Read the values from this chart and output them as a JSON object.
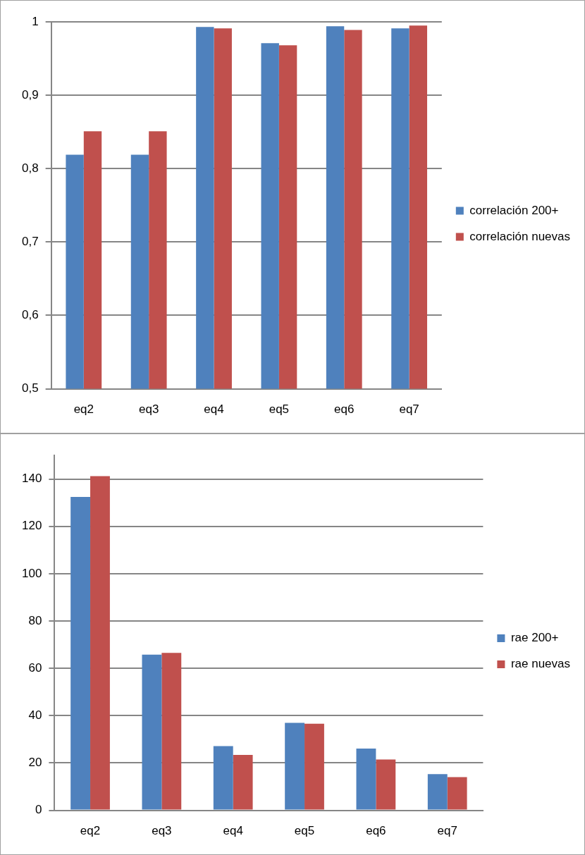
{
  "chart_data": [
    {
      "type": "bar",
      "categories": [
        "eq2",
        "eq3",
        "eq4",
        "eq5",
        "eq6",
        "eq7"
      ],
      "series": [
        {
          "name": "correlación 200+",
          "color": "#4f81bd",
          "values": [
            0.819,
            0.819,
            0.993,
            0.971,
            0.994,
            0.991
          ]
        },
        {
          "name": "correlación nuevas",
          "color": "#c0504d",
          "values": [
            0.851,
            0.851,
            0.991,
            0.968,
            0.989,
            0.995
          ]
        }
      ],
      "ylim": [
        0.5,
        1
      ],
      "yticks": [
        {
          "value": 0.5,
          "label": "0,5"
        },
        {
          "value": 0.6,
          "label": "0,6"
        },
        {
          "value": 0.7,
          "label": "0,7"
        },
        {
          "value": 0.8,
          "label": "0,8"
        },
        {
          "value": 0.9,
          "label": "0,9"
        },
        {
          "value": 1,
          "label": "1"
        }
      ],
      "grid": "y",
      "legend": "right"
    },
    {
      "type": "bar",
      "categories": [
        "eq2",
        "eq3",
        "eq4",
        "eq5",
        "eq6",
        "eq7"
      ],
      "series": [
        {
          "name": "rae 200+",
          "color": "#4f81bd",
          "values": [
            132.4,
            65.8,
            27.1,
            37.0,
            26.1,
            15.3
          ]
        },
        {
          "name": "rae nuevas",
          "color": "#c0504d",
          "values": [
            141.2,
            66.5,
            23.4,
            36.6,
            21.5,
            14.0
          ]
        }
      ],
      "ylim": [
        0,
        150
      ],
      "yticks": [
        0,
        20,
        40,
        60,
        80,
        100,
        120,
        140
      ],
      "grid": "y",
      "legend": "right"
    }
  ]
}
